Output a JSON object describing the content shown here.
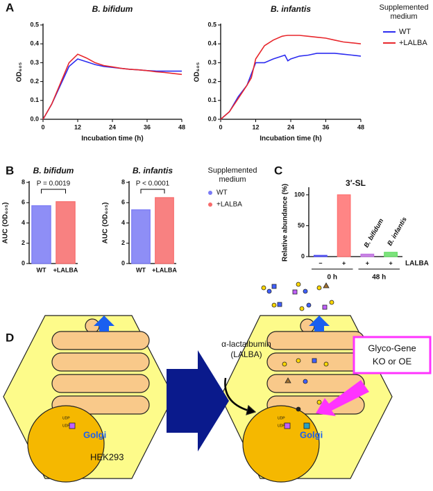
{
  "panel_labels": [
    "A",
    "B",
    "C",
    "D"
  ],
  "chart_data": [
    {
      "type": "line",
      "title": "B. bifidum",
      "xlabel": "Incubation time (h)",
      "ylabel": "OD₆₀₅",
      "x": [
        0,
        3,
        6,
        9,
        12,
        15,
        18,
        21,
        24,
        27,
        30,
        33,
        36,
        39,
        42,
        45,
        48
      ],
      "series": [
        {
          "name": "WT",
          "color": "#2b2bf0",
          "values": [
            0,
            0.08,
            0.18,
            0.28,
            0.32,
            0.305,
            0.29,
            0.28,
            0.275,
            0.27,
            0.265,
            0.262,
            0.258,
            0.256,
            0.255,
            0.255,
            0.255
          ]
        },
        {
          "name": "+LALBA",
          "color": "#e8262b",
          "values": [
            0,
            0.08,
            0.19,
            0.3,
            0.345,
            0.325,
            0.3,
            0.285,
            0.278,
            0.27,
            0.265,
            0.262,
            0.258,
            0.252,
            0.248,
            0.243,
            0.238
          ]
        }
      ],
      "xlim": [
        0,
        48
      ],
      "xticks": [
        0,
        12,
        24,
        36,
        48
      ],
      "ylim": [
        0,
        0.5
      ],
      "yticks": [
        {
          "value": 0,
          "label": "0.0"
        },
        0.1,
        0.2,
        0.3,
        0.4,
        0.5
      ]
    },
    {
      "type": "line",
      "title": "B. infantis",
      "xlabel": "Incubation time (h)",
      "ylabel": "OD₆₀₅",
      "x": [
        0,
        3,
        6,
        9,
        10.5,
        12,
        15,
        18,
        21,
        22,
        23,
        24,
        27,
        30,
        33,
        36,
        39,
        42,
        45,
        48
      ],
      "series": [
        {
          "name": "WT",
          "color": "#2b2bf0",
          "values": [
            0,
            0.04,
            0.12,
            0.18,
            0.24,
            0.3,
            0.3,
            0.32,
            0.335,
            0.34,
            0.31,
            0.32,
            0.335,
            0.34,
            0.35,
            0.35,
            0.35,
            0.345,
            0.34,
            0.335
          ]
        },
        {
          "name": "+LALBA",
          "color": "#e8262b",
          "values": [
            0,
            0.04,
            0.11,
            0.18,
            0.22,
            0.32,
            0.39,
            0.42,
            0.44,
            0.443,
            0.445,
            0.445,
            0.445,
            0.44,
            0.435,
            0.43,
            0.42,
            0.41,
            0.405,
            0.4
          ]
        }
      ],
      "xlim": [
        0,
        48
      ],
      "xticks": [
        0,
        12,
        24,
        36,
        48
      ],
      "ylim": [
        0,
        0.5
      ],
      "yticks": [
        {
          "value": 0,
          "label": "0.0"
        },
        0.1,
        0.2,
        0.3,
        0.4,
        0.5
      ],
      "legend_title": "Supplemented medium"
    },
    {
      "type": "bar",
      "title": "B. bifidum",
      "ylabel": "AUC (OD₆₀₅)",
      "categories": [
        "WT",
        "+LALBA"
      ],
      "values": [
        5.7,
        6.1
      ],
      "colors": [
        "#7a7af5",
        "#f76b6b"
      ],
      "ylim": [
        0,
        8
      ],
      "yticks": [
        0,
        2,
        4,
        6,
        8
      ],
      "annotation": "P = 0.0019"
    },
    {
      "type": "bar",
      "title": "B. infantis",
      "ylabel": "AUC (OD₆₀₅)",
      "categories": [
        "WT",
        "+LALBA"
      ],
      "values": [
        5.3,
        6.5
      ],
      "colors": [
        "#7a7af5",
        "#f76b6b"
      ],
      "ylim": [
        0,
        8
      ],
      "yticks": [
        0,
        2,
        4,
        6,
        8
      ],
      "annotation": "P < 0.0001",
      "legend_title": "Supplemented medium"
    },
    {
      "type": "bar",
      "title": "3′-SL",
      "ylabel": "Relative abundance (%)",
      "categories": [
        "−",
        "+",
        "+",
        "+"
      ],
      "values": [
        2,
        100,
        4,
        7
      ],
      "colors": [
        "#4a4af0",
        "#ff7070",
        "#c070e0",
        "#66dd66"
      ],
      "bar_annotations": [
        null,
        null,
        "B. bifidum",
        "B. infantis"
      ],
      "groups": [
        "0 h",
        "48 h"
      ],
      "row_label": "LALBA",
      "ylim": [
        0,
        110
      ],
      "yticks": [
        0,
        50,
        100
      ]
    }
  ],
  "panel_d": {
    "lalba_label": [
      "α-lactalbumin",
      "(LALBA)"
    ],
    "gene_box": [
      "Glyco-Gene",
      "KO or OE"
    ],
    "golgi": [
      "Golgi",
      "Golgi"
    ],
    "cell_line": "HEK293",
    "udp": [
      "UDP",
      "UDP",
      "UDP",
      "UDP"
    ]
  }
}
